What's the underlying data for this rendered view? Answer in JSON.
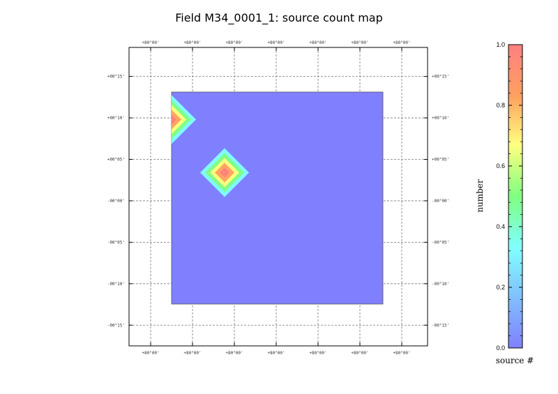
{
  "chart_data": {
    "type": "heatmap",
    "title": "Field M34_0001_1: source count map",
    "x_tick_labels": [
      "+80°00'",
      "+80°00'",
      "+80°00'",
      "+80°00'",
      "+80°00'",
      "+80°00'",
      "+80°00'"
    ],
    "y_tick_labels": [
      "+00°15'",
      "+00°10'",
      "+00°05'",
      "-00°00'",
      "-00°05'",
      "-00°10'",
      "-00°15'"
    ],
    "y_tick_values_arcmin": [
      15,
      10,
      5,
      0,
      -5,
      -10,
      -15
    ],
    "ylim_arcmin": [
      -17.5,
      18.5
    ],
    "field_extent_arcmin": {
      "dec_min": -12.5,
      "dec_max": 12.8
    },
    "sources": [
      {
        "dec_arcmin": 9.8,
        "value": 1.0,
        "note": "at field edge"
      },
      {
        "dec_arcmin": 3.4,
        "value": 1.0
      }
    ],
    "background_value": 0.0,
    "grid": true,
    "colorbar": {
      "ticks": [
        "0.0",
        "0.2",
        "0.4",
        "0.6",
        "0.8",
        "1.0"
      ],
      "tick_values": [
        0.0,
        0.2,
        0.4,
        0.6,
        0.8,
        1.0
      ],
      "vmin": 0.0,
      "vmax": 1.0,
      "ylabel": "number",
      "xlabel": "source #",
      "colors": [
        "#8080ff",
        "#80c0ff",
        "#80ffff",
        "#80ff80",
        "#ffff80",
        "#ffa060",
        "#ff8080"
      ]
    }
  }
}
